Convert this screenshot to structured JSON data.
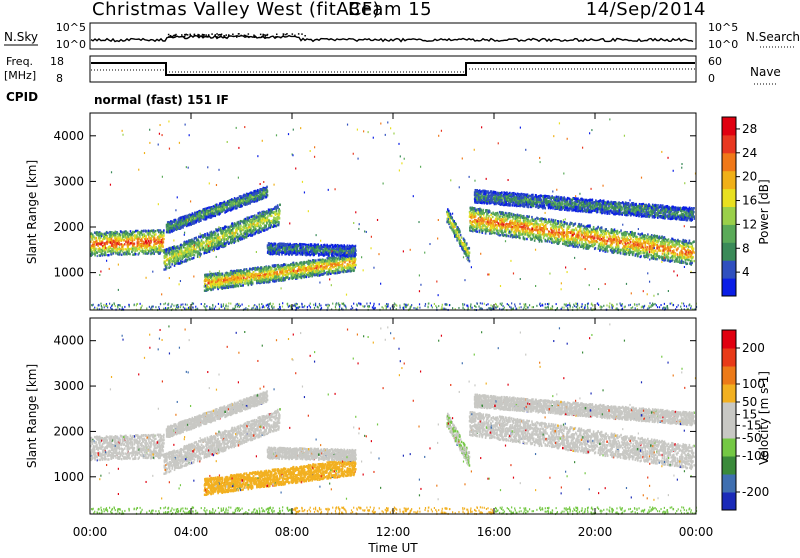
{
  "header": {
    "title": "Christmas Valley West (fitACF)",
    "beam": "Beam 15",
    "date": "14/Sep/2014"
  },
  "noise_panel": {
    "left_label": "N.Sky",
    "left_ticks": [
      "10^5",
      "10^0"
    ],
    "right_label": "N.Search",
    "right_ticks": [
      "10^5",
      "10^0"
    ]
  },
  "freq_panel": {
    "left_label_1": "Freq.",
    "left_label_2": "[MHz]",
    "left_ticks": [
      "18",
      "8"
    ],
    "right_label": "Nave",
    "right_ticks": [
      "60",
      "0"
    ],
    "cpid_label": "CPID",
    "cpid_value": "normal (fast) 151 IF"
  },
  "colors": {
    "power_scale": [
      "#0a1ee6",
      "#2f4fbf",
      "#3a8a58",
      "#5aaa58",
      "#9ad04a",
      "#e8e020",
      "#f0b018",
      "#f07818",
      "#e83820",
      "#e00010"
    ],
    "velocity_scale": [
      "#1a2ab8",
      "#3f6fb0",
      "#3a8a3a",
      "#74c844",
      "#c8c8c4",
      "#c8c8c4",
      "#f2b020",
      "#ec7a18",
      "#e83a18",
      "#e00010"
    ]
  },
  "chart_data": [
    {
      "type": "heatmap",
      "title": "Power",
      "ylabel": "Slant Range [km]",
      "yticks": [
        "4000",
        "3000",
        "2000",
        "1000"
      ],
      "ylim": [
        180,
        4500
      ],
      "colorbar_label": "Power [dB]",
      "colorbar_ticks": [
        "28",
        "24",
        "20",
        "16",
        "12",
        "8",
        "4"
      ],
      "colorbar_range": [
        0,
        30
      ]
    },
    {
      "type": "heatmap",
      "title": "Velocity",
      "ylabel": "Slant Range [km]",
      "yticks": [
        "4000",
        "3000",
        "2000",
        "1000"
      ],
      "ylim": [
        180,
        4500
      ],
      "colorbar_label": "Velocity [m s-1]",
      "colorbar_ticks": [
        "200",
        "100",
        "50",
        "15",
        "-15",
        "-50",
        "-100",
        "-200"
      ],
      "colorbar_range": [
        -250,
        250
      ],
      "xlabel": "Time UT",
      "xticks": [
        "00:00",
        "04:00",
        "08:00",
        "12:00",
        "16:00",
        "20:00",
        "00:00"
      ],
      "xlim": [
        0,
        24
      ]
    }
  ]
}
